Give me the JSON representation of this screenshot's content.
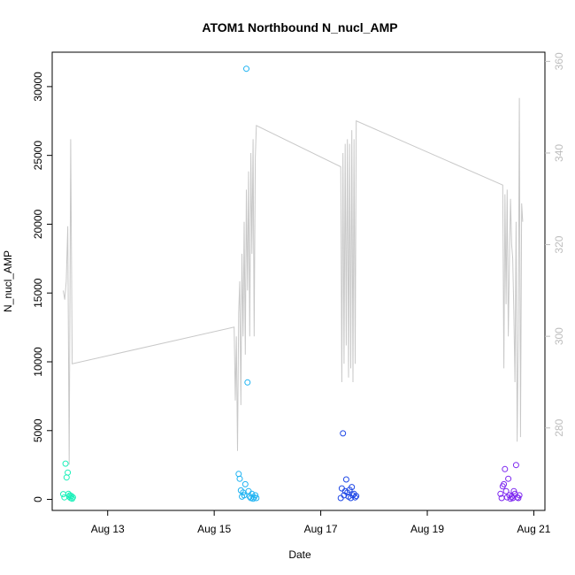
{
  "chart_data": {
    "type": "scatter",
    "title": "ATOM1 Northbound N_nucl_AMP",
    "xlabel": "Date",
    "ylabel": "N_nucl_AMP",
    "x_axis_type": "date",
    "xlim": [
      "2019-08-11T23:00",
      "2019-08-21T05:00"
    ],
    "ylim": [
      -800,
      32500
    ],
    "y2lim": [
      262,
      362
    ],
    "x_ticks": [
      {
        "label": "Aug 13",
        "date": "2019-08-13"
      },
      {
        "label": "Aug 15",
        "date": "2019-08-15"
      },
      {
        "label": "Aug 17",
        "date": "2019-08-17"
      },
      {
        "label": "Aug 19",
        "date": "2019-08-19"
      },
      {
        "label": "Aug 21",
        "date": "2019-08-21"
      }
    ],
    "y_ticks": [
      0,
      5000,
      10000,
      15000,
      20000,
      25000,
      30000
    ],
    "y2_ticks": [
      280,
      300,
      320,
      340,
      360
    ],
    "grid": false,
    "legend": "none",
    "point_colors": [
      "#19f0b9",
      "#1ed2e6",
      "#1fb3f2",
      "#1f48e6",
      "#2a3ff0",
      "#6b2fe8",
      "#7d27f0"
    ],
    "line_color": "#c8c8c8",
    "series": [
      {
        "kind": "points",
        "color": "#19f0b9",
        "x": [
          "2019-08-12T04:00",
          "2019-08-12T04:30",
          "2019-08-12T05:00",
          "2019-08-12T05:30",
          "2019-08-12T06:00",
          "2019-08-12T06:20",
          "2019-08-12T06:40",
          "2019-08-12T07:00",
          "2019-08-12T07:20",
          "2019-08-12T07:40",
          "2019-08-12T08:00",
          "2019-08-12T08:20"
        ],
        "y": [
          380,
          150,
          2600,
          1600,
          1950,
          400,
          200,
          300,
          100,
          250,
          50,
          150
        ]
      },
      {
        "kind": "points",
        "color": "#1fb3f2",
        "x": [
          "2019-08-15T11:00",
          "2019-08-15T11:30",
          "2019-08-15T12:00",
          "2019-08-15T12:30",
          "2019-08-15T13:00",
          "2019-08-15T13:30",
          "2019-08-15T14:00",
          "2019-08-15T14:30",
          "2019-08-15T15:00",
          "2019-08-15T15:30",
          "2019-08-15T16:00",
          "2019-08-15T16:30",
          "2019-08-15T17:00",
          "2019-08-15T17:30",
          "2019-08-15T18:00",
          "2019-08-15T18:30",
          "2019-08-15T19:00"
        ],
        "y": [
          1850,
          1500,
          650,
          200,
          500,
          300,
          1100,
          31300,
          8500,
          600,
          200,
          100,
          400,
          50,
          150,
          300,
          100
        ]
      },
      {
        "kind": "points",
        "color": "#1f48e6",
        "x": [
          "2019-08-17T09:00",
          "2019-08-17T09:30",
          "2019-08-17T10:00",
          "2019-08-17T10:30",
          "2019-08-17T11:00",
          "2019-08-17T11:30",
          "2019-08-17T12:00",
          "2019-08-17T12:30",
          "2019-08-17T13:00",
          "2019-08-17T13:30",
          "2019-08-17T14:00",
          "2019-08-17T14:30",
          "2019-08-17T15:00",
          "2019-08-17T15:30",
          "2019-08-17T16:00"
        ],
        "y": [
          100,
          800,
          4800,
          300,
          600,
          1450,
          500,
          200,
          700,
          100,
          900,
          300,
          400,
          150,
          250
        ]
      },
      {
        "kind": "points",
        "color": "#7d27f0",
        "x": [
          "2019-08-20T09:00",
          "2019-08-20T09:30",
          "2019-08-20T10:00",
          "2019-08-20T10:30",
          "2019-08-20T11:00",
          "2019-08-20T11:30",
          "2019-08-20T12:00",
          "2019-08-20T12:30",
          "2019-08-20T13:00",
          "2019-08-20T13:30",
          "2019-08-20T14:00",
          "2019-08-20T14:30",
          "2019-08-20T15:00",
          "2019-08-20T15:30",
          "2019-08-20T16:00",
          "2019-08-20T16:30",
          "2019-08-20T17:00",
          "2019-08-20T17:30"
        ],
        "y": [
          400,
          100,
          950,
          1100,
          2200,
          600,
          150,
          1500,
          300,
          50,
          200,
          100,
          600,
          400,
          2500,
          150,
          100,
          300
        ]
      },
      {
        "kind": "line",
        "axis": "right",
        "color": "#c8c8c8",
        "x": [
          "2019-08-12T04:00",
          "2019-08-12T04:40",
          "2019-08-12T05:20",
          "2019-08-12T06:00",
          "2019-08-12T06:40",
          "2019-08-12T07:20",
          "2019-08-12T08:00",
          "2019-08-15T09:00",
          "2019-08-15T09:30",
          "2019-08-15T10:00",
          "2019-08-15T10:30",
          "2019-08-15T11:00",
          "2019-08-15T11:30",
          "2019-08-15T12:00",
          "2019-08-15T12:30",
          "2019-08-15T13:00",
          "2019-08-15T13:30",
          "2019-08-15T14:00",
          "2019-08-15T14:30",
          "2019-08-15T15:00",
          "2019-08-15T15:30",
          "2019-08-15T16:00",
          "2019-08-15T16:30",
          "2019-08-15T17:00",
          "2019-08-15T17:30",
          "2019-08-15T18:00",
          "2019-08-15T18:30",
          "2019-08-15T19:00",
          "2019-08-17T09:00",
          "2019-08-17T09:30",
          "2019-08-17T10:00",
          "2019-08-17T10:30",
          "2019-08-17T11:00",
          "2019-08-17T11:30",
          "2019-08-17T12:00",
          "2019-08-17T12:30",
          "2019-08-17T13:00",
          "2019-08-17T13:30",
          "2019-08-17T14:00",
          "2019-08-17T14:30",
          "2019-08-17T15:00",
          "2019-08-17T15:30",
          "2019-08-17T16:00",
          "2019-08-20T10:00",
          "2019-08-20T10:30",
          "2019-08-20T11:00",
          "2019-08-20T11:30",
          "2019-08-20T12:00",
          "2019-08-20T12:30",
          "2019-08-20T13:00",
          "2019-08-20T13:30",
          "2019-08-20T14:00",
          "2019-08-20T14:30",
          "2019-08-20T15:00",
          "2019-08-20T15:30",
          "2019-08-20T16:00",
          "2019-08-20T16:30",
          "2019-08-20T17:00",
          "2019-08-20T17:30",
          "2019-08-20T18:00",
          "2019-08-20T18:30",
          "2019-08-20T19:00"
        ],
        "y": [
          310,
          308,
          312,
          324,
          272,
          343,
          294,
          302,
          286,
          300,
          275,
          305,
          312,
          285,
          318,
          300,
          325,
          296,
          332,
          310,
          336,
          300,
          340,
          318,
          343,
          300,
          339,
          346,
          337,
          290,
          340,
          294,
          342,
          298,
          343,
          291,
          342,
          293,
          345,
          290,
          343,
          294,
          347,
          333,
          293,
          331,
          307,
          332,
          300,
          317,
          330,
          320,
          317,
          305,
          290,
          325,
          277,
          300,
          352,
          278,
          329,
          325
        ]
      }
    ]
  }
}
